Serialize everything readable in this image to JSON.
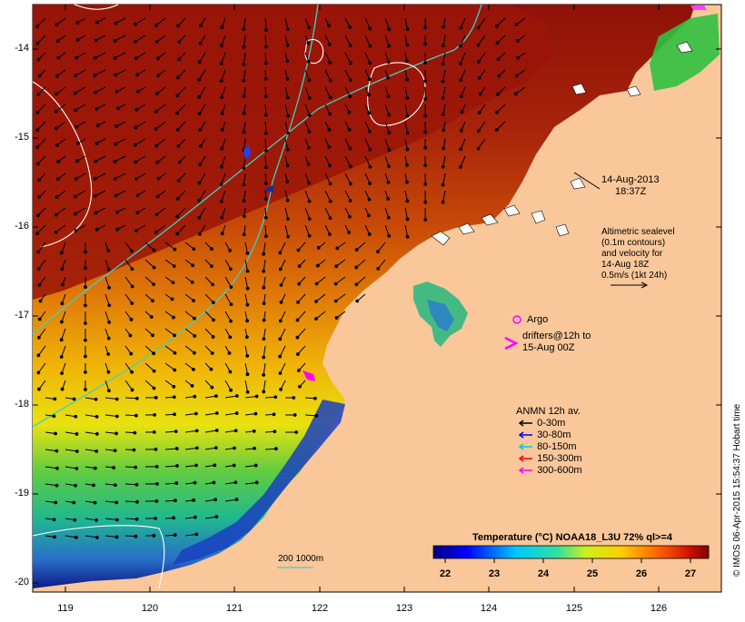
{
  "map": {
    "lat_ticks": [
      "-14",
      "-15",
      "-16",
      "-17",
      "-18",
      "-19",
      "-20"
    ],
    "lon_ticks": [
      "119",
      "120",
      "121",
      "122",
      "123",
      "124",
      "125",
      "126"
    ],
    "timestamp_date": "14-Aug-2013",
    "timestamp_time": "18:37Z",
    "altimetry_note": [
      "Altimetric sealevel",
      "(0.1m contours)",
      "and velocity for",
      "14-Aug 18Z",
      "0.5m/s (1kt 24h)"
    ],
    "argo_label": "Argo",
    "drifters_label": [
      "drifters@12h to",
      "15-Aug 00Z"
    ],
    "anmn_title": "ANMN 12h av.",
    "anmn_legend": [
      {
        "label": "0-30m",
        "color": "#000000"
      },
      {
        "label": "30-80m",
        "color": "#0000ff"
      },
      {
        "label": "80-150m",
        "color": "#00cccc"
      },
      {
        "label": "150-300m",
        "color": "#ff0000"
      },
      {
        "label": "300-600m",
        "color": "#ff00ff"
      }
    ],
    "isobath_label": "200  1000m",
    "colorbar_title": "Temperature (°C) NOAA18_L3U 72% ql>=4",
    "colorbar_ticks": [
      "22",
      "23",
      "24",
      "25",
      "26",
      "27"
    ],
    "credit": "© IMOS 06-Apr-2015 15:54:37 Hobart time",
    "colors": {
      "land": "#f9c79a",
      "warm": "#9a1508",
      "cold": "#0a1d8a",
      "isobath": "#40d0c0",
      "contour": "#ffffff",
      "argo": "#ff00ff"
    }
  }
}
